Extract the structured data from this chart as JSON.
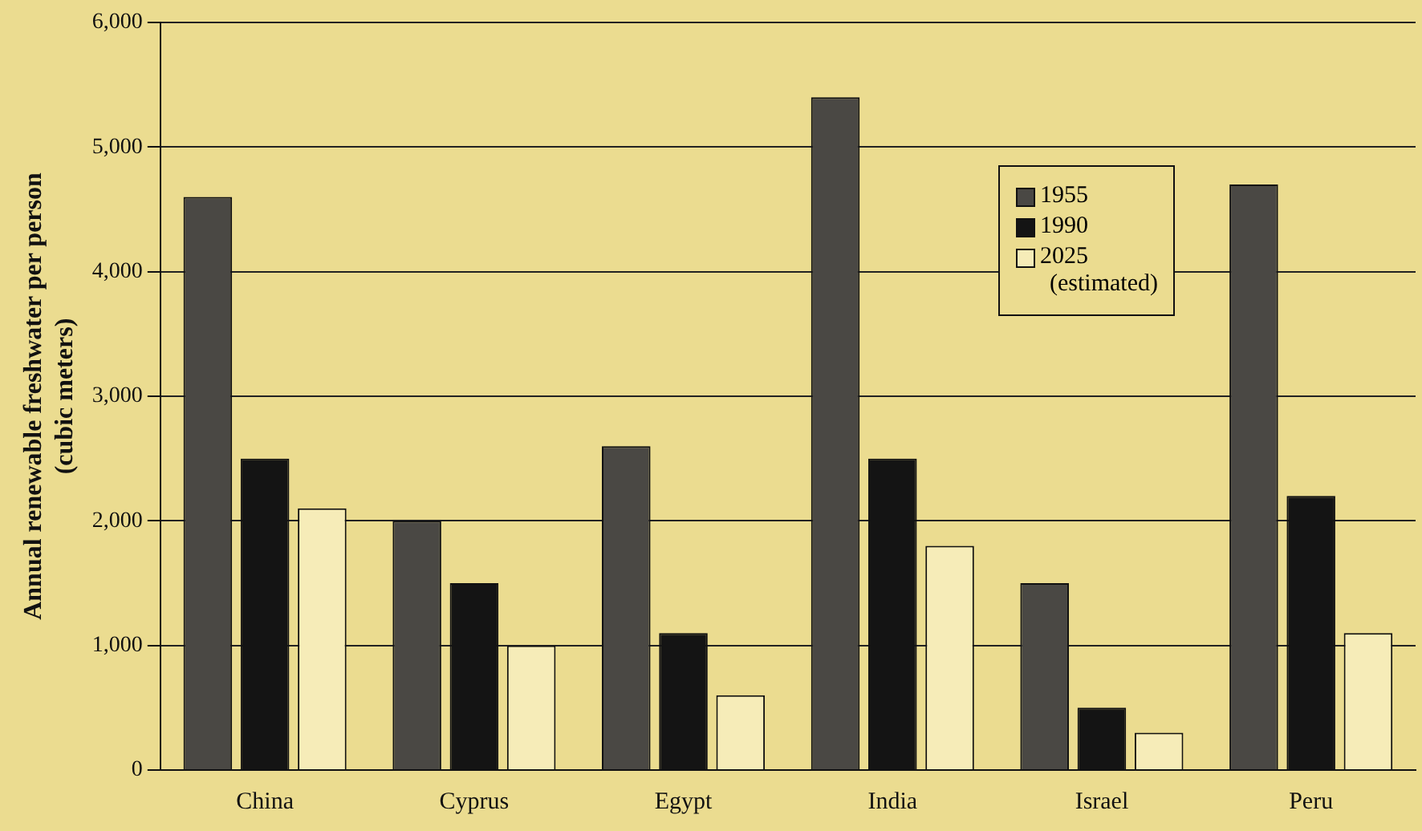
{
  "chart_data": {
    "type": "bar",
    "ylabel": "Annual renewable freshwater per person (cubic meters)",
    "categories": [
      "China",
      "Cyprus",
      "Egypt",
      "India",
      "Israel",
      "Peru"
    ],
    "series": [
      {
        "name": "1955",
        "color": "#4a4844",
        "values": [
          4600,
          2000,
          2600,
          5400,
          1500,
          4700
        ]
      },
      {
        "name": "1990",
        "color": "#141414",
        "values": [
          2500,
          1500,
          1100,
          2500,
          500,
          2200
        ]
      },
      {
        "name": "2025 (estimated)",
        "color": "#f6ecb8",
        "values": [
          2100,
          1000,
          600,
          1800,
          300,
          1100
        ]
      }
    ],
    "ylim": [
      0,
      6000
    ],
    "yticks": [
      0,
      {
        "value": 1000,
        "label": "1,000"
      },
      {
        "value": 2000,
        "label": "2,000"
      },
      {
        "value": 3000,
        "label": "3,000"
      },
      {
        "value": 4000,
        "label": "4,000"
      },
      {
        "value": 5000,
        "label": "5,000"
      },
      {
        "value": 6000,
        "label": "6,000"
      }
    ],
    "grid": "y",
    "legend": "top right"
  }
}
